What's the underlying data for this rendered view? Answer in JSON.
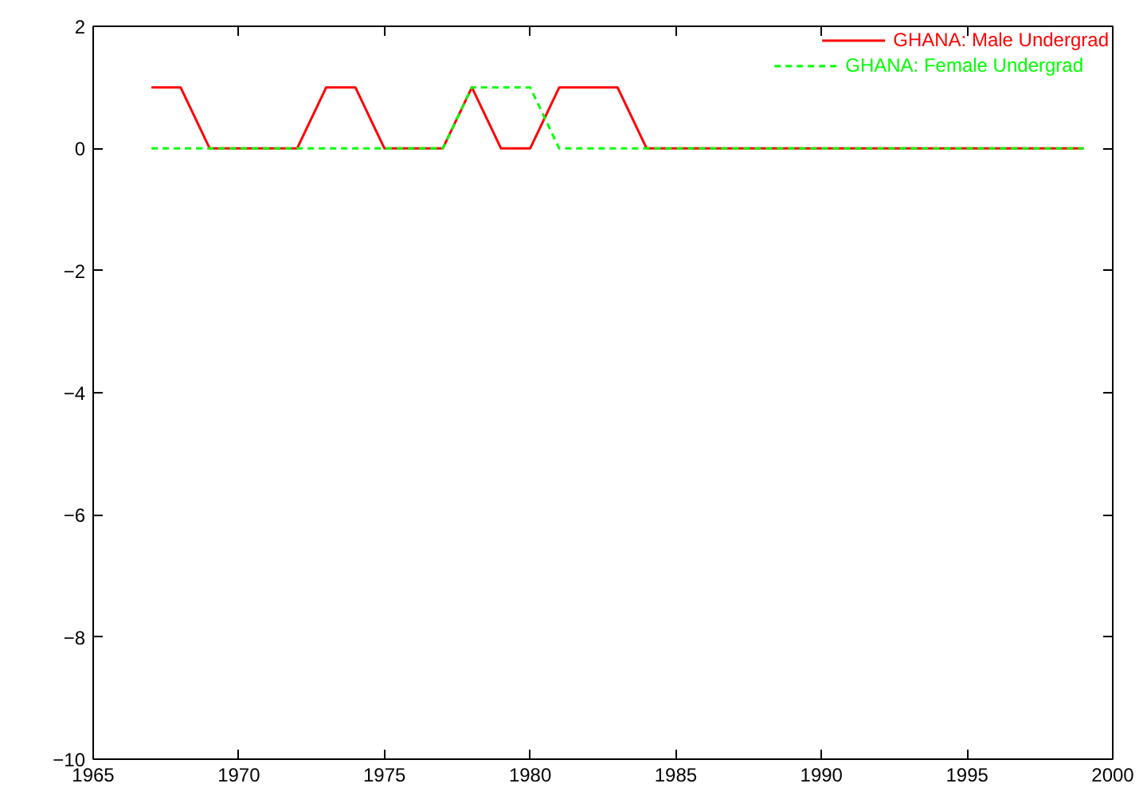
{
  "chart_data": {
    "type": "line",
    "x": [
      1967,
      1968,
      1969,
      1970,
      1971,
      1972,
      1973,
      1974,
      1975,
      1976,
      1977,
      1978,
      1979,
      1980,
      1981,
      1982,
      1983,
      1984,
      1985,
      1986,
      1987,
      1988,
      1989,
      1990,
      1991,
      1992,
      1993,
      1994,
      1995,
      1996,
      1997,
      1998,
      1999
    ],
    "series": [
      {
        "name": "GHANA: Male Undergrad",
        "color": "#ff0000",
        "line_style": "solid",
        "values": [
          1,
          1,
          0,
          0,
          0,
          0,
          1,
          1,
          0,
          0,
          0,
          1,
          0,
          0,
          1,
          1,
          1,
          0,
          0,
          0,
          0,
          0,
          0,
          0,
          0,
          0,
          0,
          0,
          0,
          0,
          0,
          0,
          0
        ]
      },
      {
        "name": "GHANA: Female Undergrad",
        "color": "#00ff00",
        "line_style": "dashed",
        "values": [
          0,
          0,
          0,
          0,
          0,
          0,
          0,
          0,
          0,
          0,
          0,
          1,
          1,
          1,
          0,
          0,
          0,
          0,
          0,
          0,
          0,
          0,
          0,
          0,
          0,
          0,
          0,
          0,
          0,
          0,
          0,
          0,
          0
        ]
      }
    ],
    "xlim": [
      1965,
      2000
    ],
    "xticks": [
      1965,
      1970,
      1975,
      1980,
      1985,
      1990,
      1995,
      2000
    ],
    "ylim": [
      -10,
      2
    ],
    "yticks": [
      -10,
      -8,
      -6,
      -4,
      -2,
      0,
      2
    ],
    "grid": false,
    "legend": "top right"
  }
}
